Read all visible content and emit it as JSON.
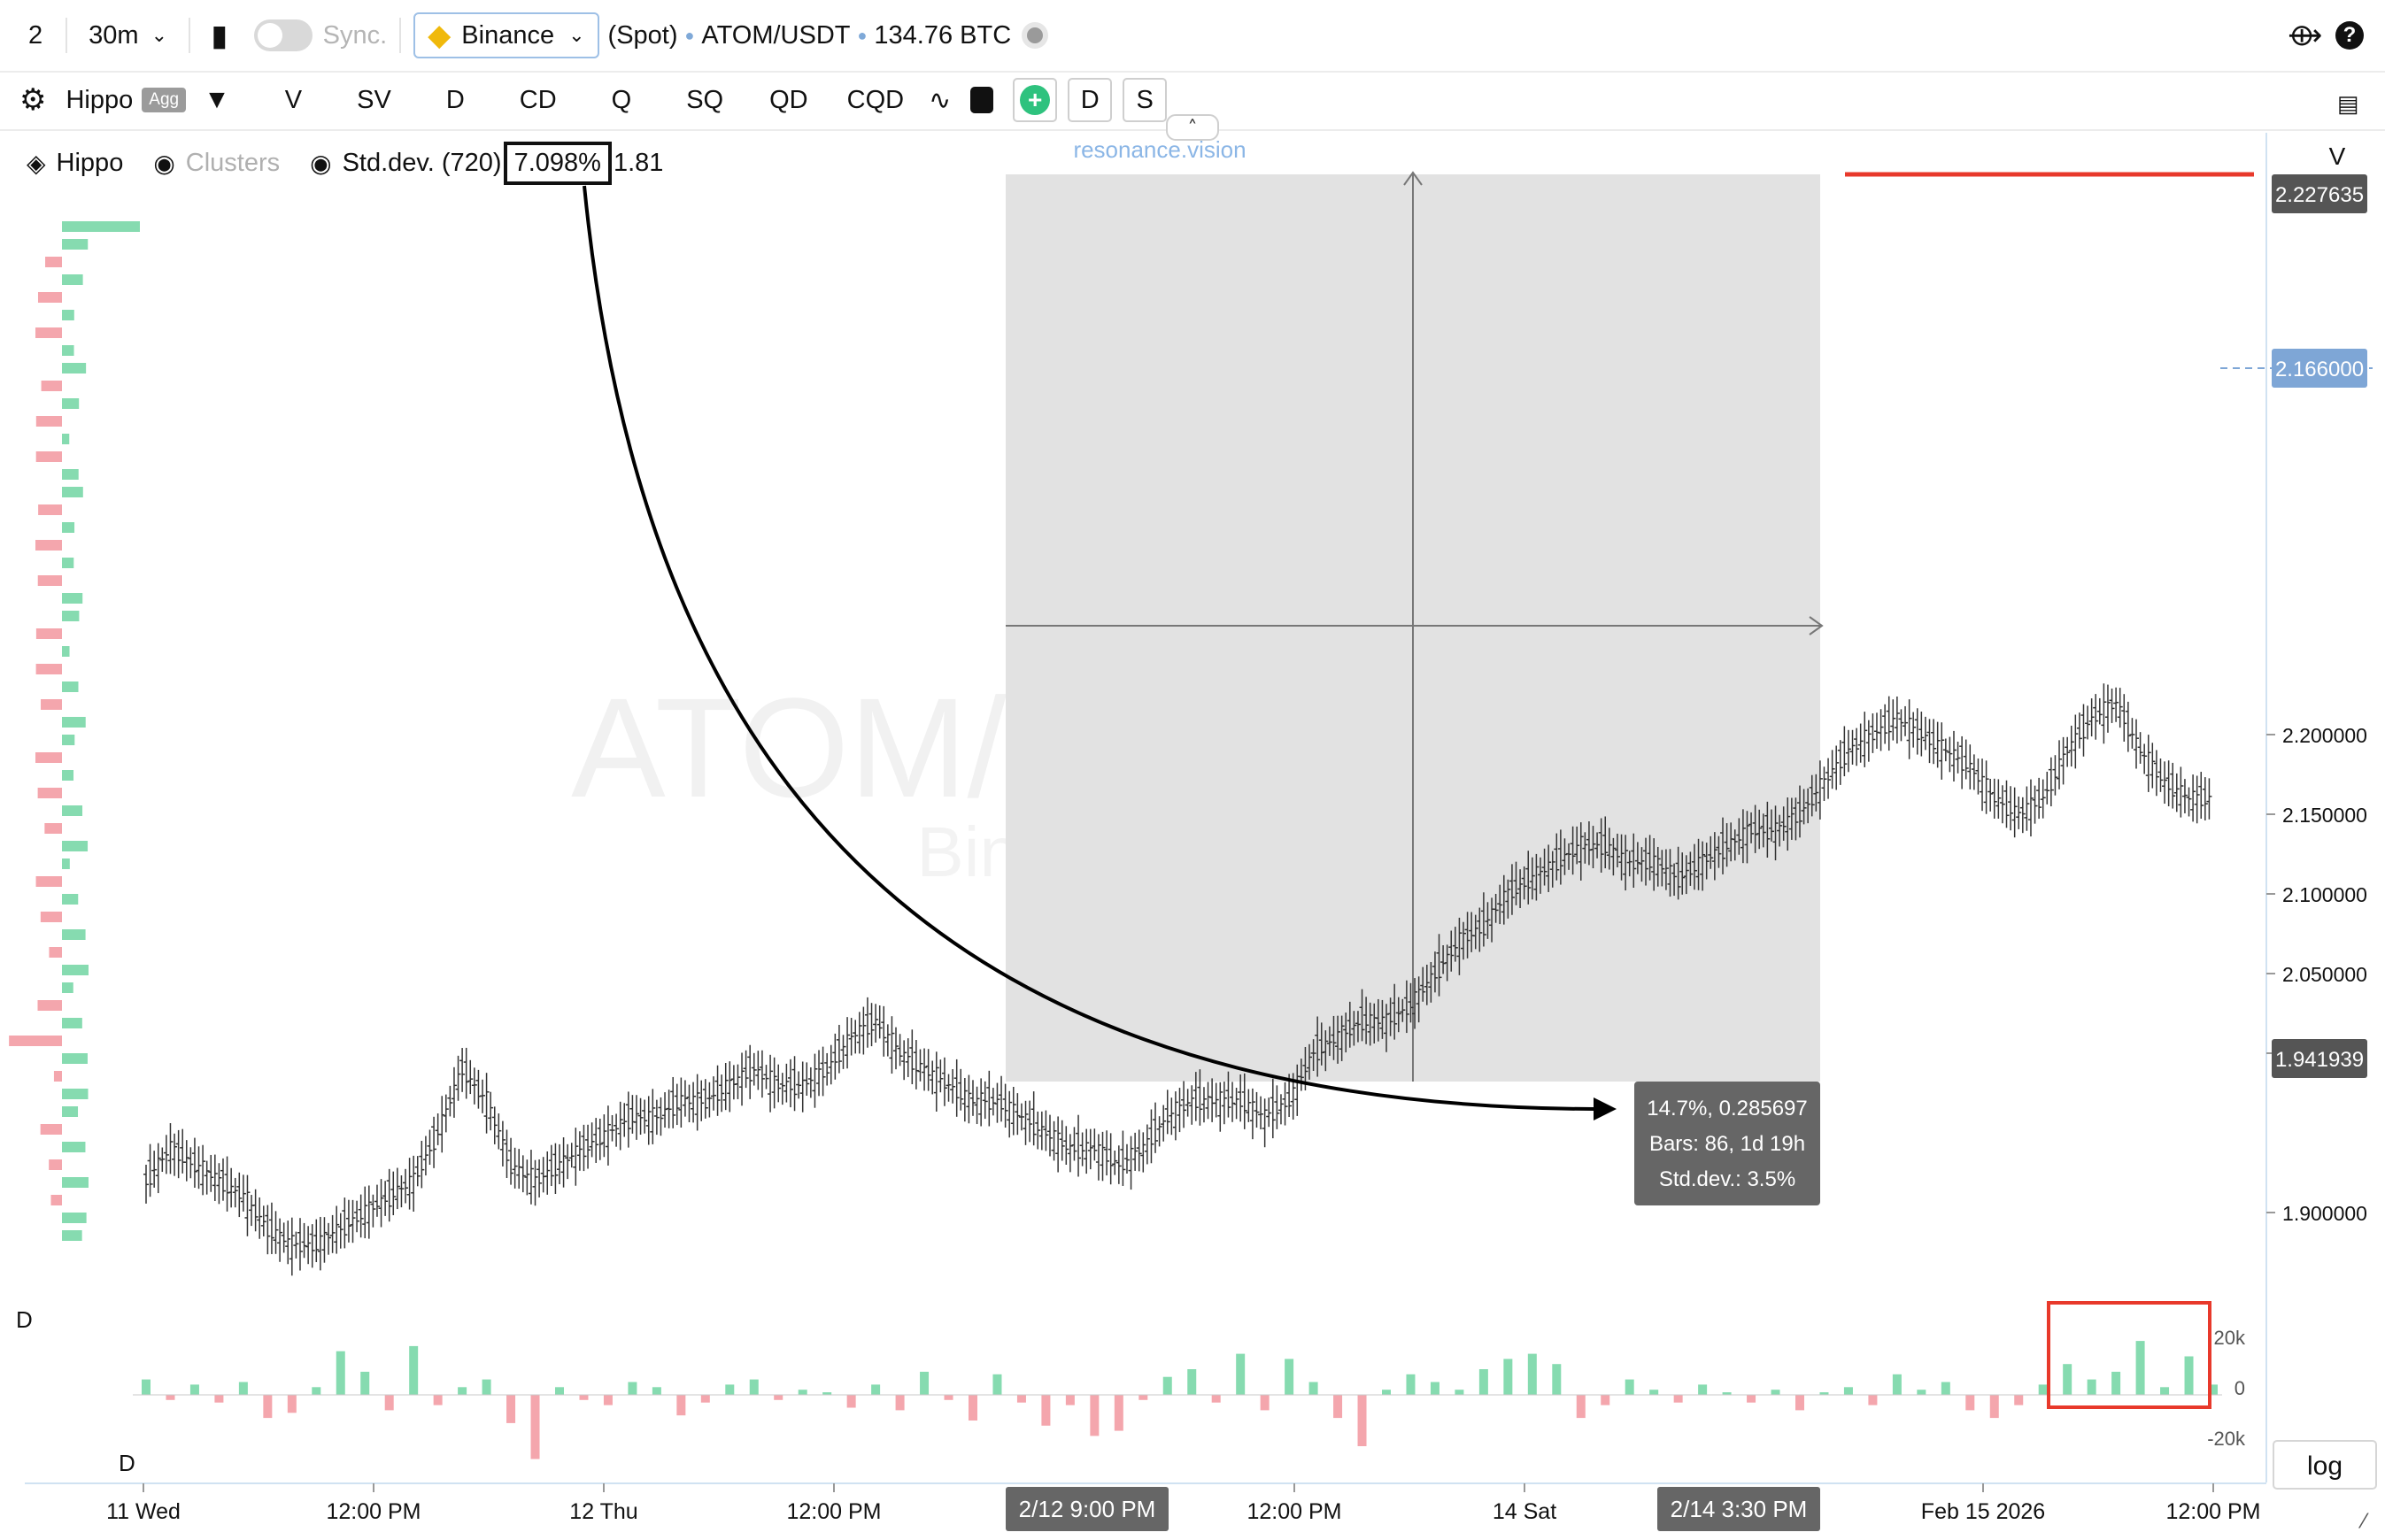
{
  "toolbar": {
    "layout_count": "2",
    "interval": "30m",
    "sync_label": "Sync.",
    "exchange": "Binance",
    "market_type": "(Spot)",
    "symbol": "ATOM/USDT",
    "volume": "134.76 BTC"
  },
  "toolbar2": {
    "preset": "Hippo",
    "agg_badge": "Agg",
    "buttons": [
      "V",
      "SV",
      "D",
      "CD",
      "Q",
      "SQ",
      "QD",
      "CQD"
    ],
    "tag_d": "D",
    "tag_s": "S"
  },
  "indicators": {
    "hippo": "Hippo",
    "clusters": "Clusters",
    "stddev_label": "Std.dev. (720)",
    "stddev_value": "7.098%",
    "stddev_extra": "1.81"
  },
  "watermark": {
    "main": "ATOM/USDT, 30m",
    "sub": "Binance (Spot)"
  },
  "brand": "resonance.vision",
  "colors": {
    "up": "#86dbb0",
    "down": "#f4a6ad",
    "price_tag": "#555555",
    "current_tag": "#7ea6d6",
    "highlight": "#e8392b"
  },
  "chart_data": {
    "type": "ohlc",
    "title": "ATOM/USDT, 30m",
    "yaxis_ticks": [
      "2.200000",
      "2.150000",
      "2.100000",
      "2.050000",
      "2.000000",
      "1.900000"
    ],
    "ylim": [
      1.86,
      2.24
    ],
    "xaxis_ticks": [
      "11 Wed",
      "12:00 PM",
      "12 Thu",
      "12:00 PM",
      "12:00 PM",
      "14 Sat",
      "Feb 15 2026",
      "12:00 PM"
    ],
    "x_markers": [
      "2/12 9:00 PM",
      "2/14 3:30 PM"
    ],
    "price_labels": {
      "high": "2.227635",
      "current": "2.166000",
      "range_low": "1.941939"
    },
    "price_path": [
      1.92,
      1.94,
      1.93,
      1.92,
      1.91,
      1.89,
      1.88,
      1.88,
      1.89,
      1.9,
      1.91,
      1.92,
      1.95,
      1.99,
      1.97,
      1.93,
      1.92,
      1.93,
      1.94,
      1.95,
      1.96,
      1.96,
      1.97,
      1.97,
      1.98,
      1.99,
      1.98,
      1.98,
      1.99,
      2.01,
      2.02,
      2.0,
      1.99,
      1.98,
      1.97,
      1.97,
      1.96,
      1.95,
      1.94,
      1.94,
      1.93,
      1.94,
      1.96,
      1.97,
      1.97,
      1.97,
      1.96,
      1.97,
      2.0,
      2.01,
      2.02,
      2.02,
      2.03,
      2.05,
      2.07,
      2.08,
      2.1,
      2.11,
      2.12,
      2.13,
      2.13,
      2.12,
      2.12,
      2.11,
      2.12,
      2.13,
      2.14,
      2.14,
      2.15,
      2.17,
      2.19,
      2.2,
      2.21,
      2.2,
      2.19,
      2.18,
      2.16,
      2.15,
      2.16,
      2.19,
      2.21,
      2.22,
      2.19,
      2.17,
      2.16,
      2.16
    ],
    "delta_values": [
      6,
      -2,
      4,
      -3,
      5,
      -9,
      -7,
      3,
      17,
      9,
      -6,
      19,
      -4,
      3,
      6,
      -11,
      -25,
      3,
      -2,
      -4,
      5,
      3,
      -8,
      -3,
      4,
      6,
      -2,
      2,
      1,
      -5,
      4,
      -6,
      9,
      -2,
      -10,
      8,
      -3,
      -12,
      -4,
      -16,
      -14,
      -2,
      7,
      10,
      -3,
      16,
      -6,
      14,
      5,
      -9,
      -20,
      2,
      8,
      5,
      2,
      10,
      14,
      16,
      12,
      -9,
      -4,
      6,
      2,
      -3,
      4,
      1,
      -3,
      2,
      -6,
      1,
      3,
      -4,
      8,
      2,
      5,
      -6,
      -9,
      -4,
      4,
      12,
      6,
      9,
      21,
      3,
      15,
      4
    ],
    "measurement": {
      "change": "14.7%, 0.285697",
      "bars": "Bars: 86, 1d 19h",
      "stddev": "Std.dev.: 3.5%"
    },
    "delta_axis_ticks": [
      "20k",
      "0",
      "-20k"
    ],
    "delta_label": "D",
    "scale_button": "log",
    "price_axis_header": "V"
  }
}
